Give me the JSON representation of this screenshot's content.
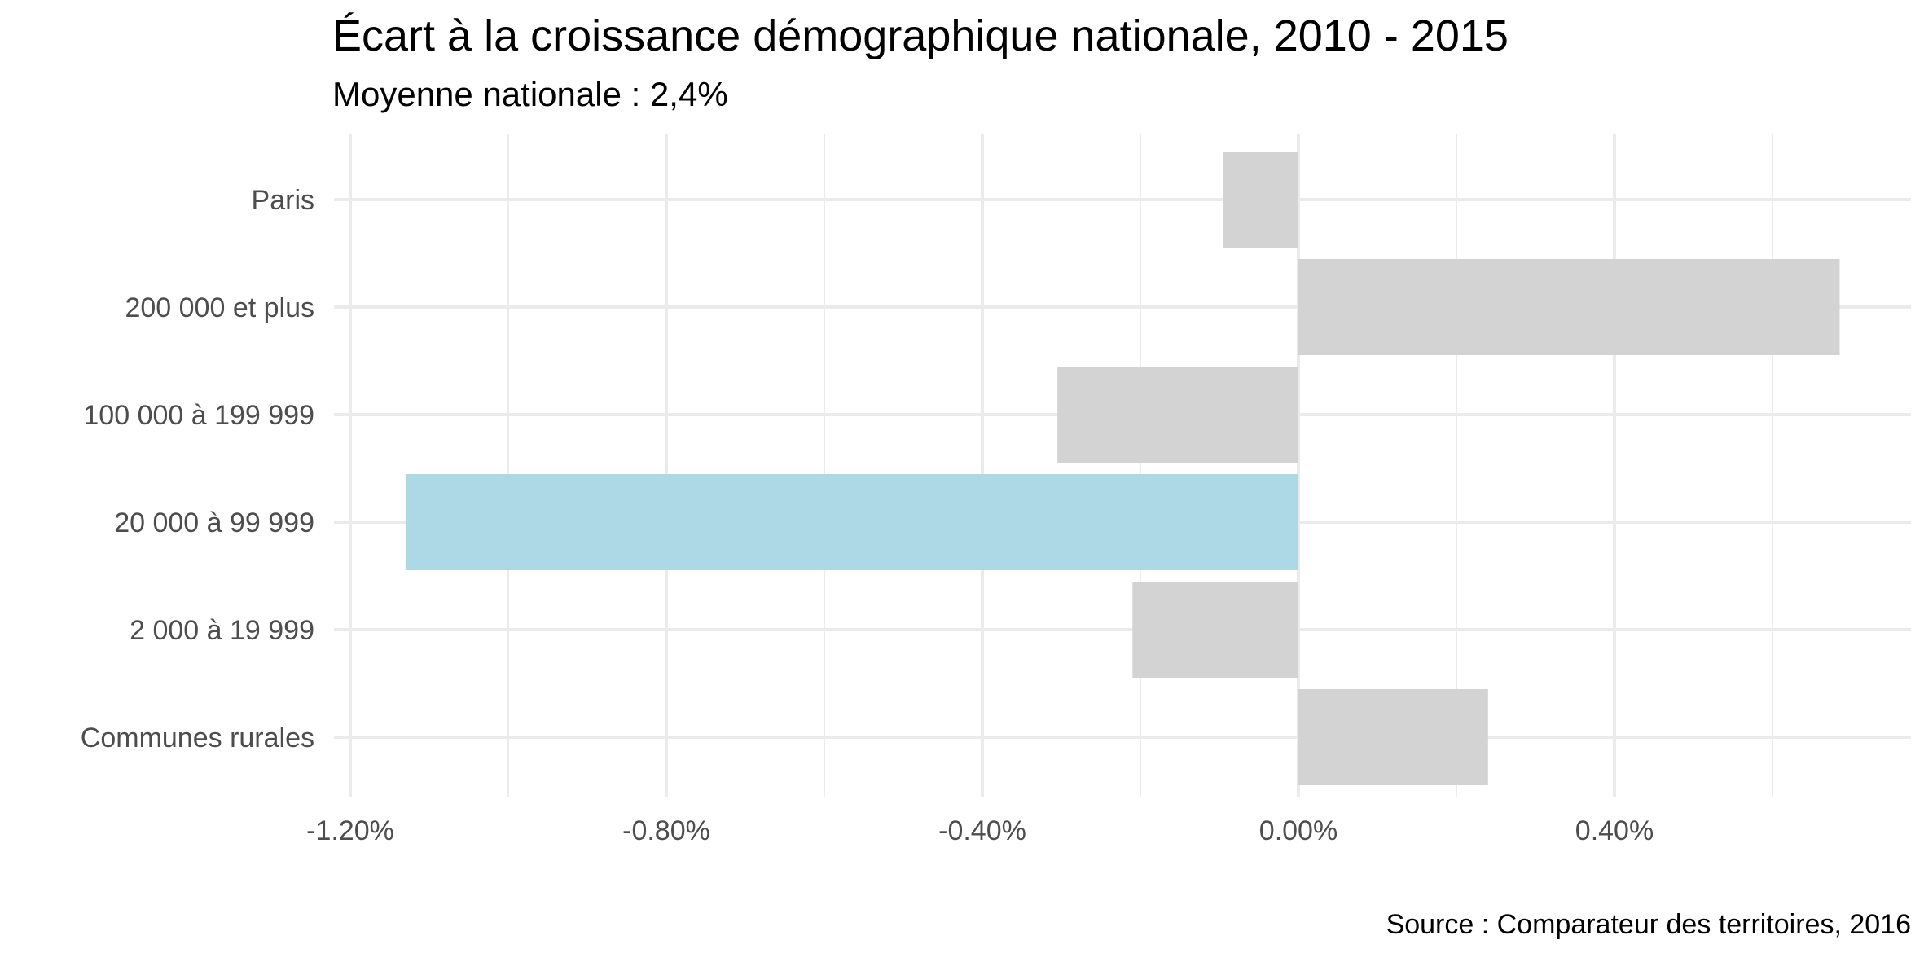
{
  "chart_data": {
    "type": "bar",
    "orientation": "horizontal",
    "title": "Écart à la croissance démographique nationale, 2010 - 2015",
    "subtitle": "Moyenne nationale : 2,4%",
    "caption": "Source : Comparateur des territoires, 2016",
    "xlabel": "",
    "ylabel": "",
    "categories": [
      "Paris",
      "200 000 et plus",
      "100 000 à 199 999",
      "20 000 à 99 999",
      "2 000 à 19 999",
      "Communes rurales"
    ],
    "values": [
      -0.095,
      0.685,
      -0.305,
      -1.13,
      -0.21,
      0.24
    ],
    "highlight_index": 3,
    "colors": {
      "default": "#d3d3d3",
      "highlight": "#add8e6"
    },
    "xlim": [
      -1.2,
      0.8
    ],
    "xticks": [
      -1.2,
      -0.8,
      -0.4,
      0.0,
      0.4
    ],
    "xtick_labels": [
      "-1.20%",
      "-0.80%",
      "-0.40%",
      "0.00%",
      "0.40%"
    ],
    "grid": true,
    "legend": "none"
  }
}
